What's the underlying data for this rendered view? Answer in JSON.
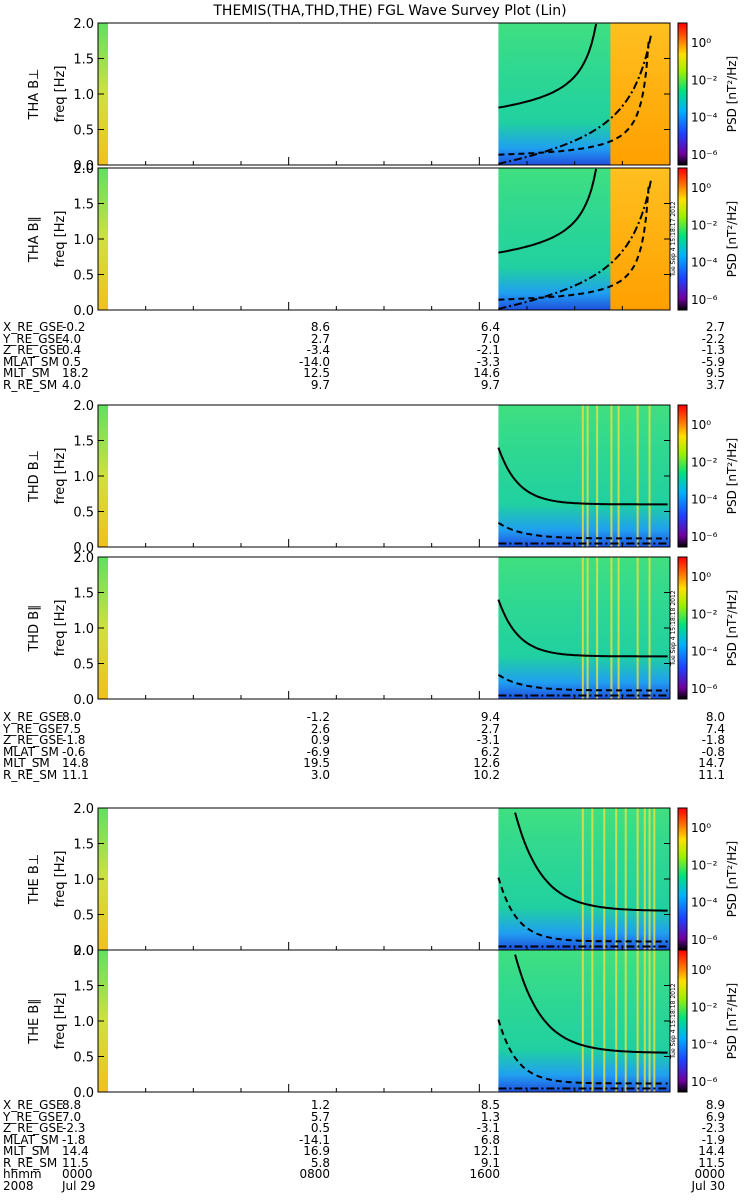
{
  "title": "THEMIS(THA,THD,THE) FGL Wave Survey Plot (Lin)",
  "colors": {
    "background": "#20c8a0",
    "white": "#ffffff"
  },
  "chart_data": {
    "type": "heatmap",
    "x_range_hours": [
      0,
      24
    ],
    "data_start_hour": 16.8,
    "panels": [
      {
        "probe": "THA",
        "component": "B⊥",
        "title": "THA B⊥",
        "ylabel": "freq [Hz]",
        "ylim": [
          0,
          2.0
        ],
        "yticks": [
          "0.0",
          "0.5",
          "1.0",
          "1.5",
          "2.0"
        ],
        "cb_label": "PSD [nT²/Hz]",
        "cb_ticks": [
          "10⁰",
          "10⁻²",
          "10⁻⁴",
          "10⁻⁶"
        ],
        "stamp": ""
      },
      {
        "probe": "THA",
        "component": "B∥",
        "title": "THA B∥",
        "ylabel": "freq [Hz]",
        "ylim": [
          0,
          2.0
        ],
        "yticks": [
          "0.0",
          "0.5",
          "1.0",
          "1.5",
          "2.0"
        ],
        "cb_label": "PSD [nT²/Hz]",
        "cb_ticks": [
          "10⁰",
          "10⁻²",
          "10⁻⁴",
          "10⁻⁶"
        ],
        "stamp": "Tue Sep  4 15:18:17 2012"
      },
      {
        "probe": "THD",
        "component": "B⊥",
        "title": "THD B⊥",
        "ylabel": "freq [Hz]",
        "ylim": [
          0,
          2.0
        ],
        "yticks": [
          "0.0",
          "0.5",
          "1.0",
          "1.5",
          "2.0"
        ],
        "cb_label": "PSD [nT²/Hz]",
        "cb_ticks": [
          "10⁰",
          "10⁻²",
          "10⁻⁴",
          "10⁻⁶"
        ],
        "stamp": ""
      },
      {
        "probe": "THD",
        "component": "B∥",
        "title": "THD B∥",
        "ylabel": "freq [Hz]",
        "ylim": [
          0,
          2.0
        ],
        "yticks": [
          "0.0",
          "0.5",
          "1.0",
          "1.5",
          "2.0"
        ],
        "cb_label": "PSD [nT²/Hz]",
        "cb_ticks": [
          "10⁰",
          "10⁻²",
          "10⁻⁴",
          "10⁻⁶"
        ],
        "stamp": "Tue Sep  4 15:18:18 2012"
      },
      {
        "probe": "THE",
        "component": "B⊥",
        "title": "THE B⊥",
        "ylabel": "freq [Hz]",
        "ylim": [
          0,
          2.0
        ],
        "yticks": [
          "0.0",
          "0.5",
          "1.0",
          "1.5",
          "2.0"
        ],
        "cb_label": "PSD [nT²/Hz]",
        "cb_ticks": [
          "10⁰",
          "10⁻²",
          "10⁻⁴",
          "10⁻⁶"
        ],
        "stamp": ""
      },
      {
        "probe": "THE",
        "component": "B∥",
        "title": "THE B∥",
        "ylabel": "freq [Hz]",
        "ylim": [
          0,
          2.0
        ],
        "yticks": [
          "0.0",
          "0.5",
          "1.0",
          "1.5",
          "2.0"
        ],
        "cb_label": "PSD [nT²/Hz]",
        "cb_ticks": [
          "10⁰",
          "10⁻²",
          "10⁻⁴",
          "10⁻⁶"
        ],
        "stamp": "Tue Sep  4 15:18:18 2012"
      }
    ],
    "orbit_tables": [
      {
        "probe": "THA",
        "rows": [
          {
            "label": "X_RE_GSE",
            "values": [
              "-0.2",
              "8.6",
              "6.4",
              "2.7"
            ]
          },
          {
            "label": "Y_RE_GSE",
            "values": [
              "4.0",
              "2.7",
              "7.0",
              "-2.2"
            ]
          },
          {
            "label": "Z_RE_GSE",
            "values": [
              "0.4",
              "-3.4",
              "-2.1",
              "-1.3"
            ]
          },
          {
            "label": "MLAT_SM",
            "values": [
              "0.5",
              "-14.0",
              "-3.3",
              "-5.9"
            ]
          },
          {
            "label": "MLT_SM",
            "values": [
              "18.2",
              "12.5",
              "14.6",
              "9.5"
            ]
          },
          {
            "label": "R_RE_SM",
            "values": [
              "4.0",
              "9.7",
              "9.7",
              "3.7"
            ]
          }
        ]
      },
      {
        "probe": "THD",
        "rows": [
          {
            "label": "X_RE_GSE",
            "values": [
              "8.0",
              "-1.2",
              "9.4",
              "8.0"
            ]
          },
          {
            "label": "Y_RE_GSE",
            "values": [
              "7.5",
              "2.6",
              "2.7",
              "7.4"
            ]
          },
          {
            "label": "Z_RE_GSE",
            "values": [
              "-1.8",
              "0.9",
              "-3.1",
              "-1.8"
            ]
          },
          {
            "label": "MLAT_SM",
            "values": [
              "-0.6",
              "-6.9",
              "6.2",
              "-0.8"
            ]
          },
          {
            "label": "MLT_SM",
            "values": [
              "14.8",
              "19.5",
              "12.6",
              "14.7"
            ]
          },
          {
            "label": "R_RE_SM",
            "values": [
              "11.1",
              "3.0",
              "10.2",
              "11.1"
            ]
          }
        ]
      },
      {
        "probe": "THE",
        "rows": [
          {
            "label": "X_RE_GSE",
            "values": [
              "8.8",
              "1.2",
              "8.5",
              "8.9"
            ]
          },
          {
            "label": "Y_RE_GSE",
            "values": [
              "7.0",
              "5.7",
              "1.3",
              "6.9"
            ]
          },
          {
            "label": "Z_RE_GSE",
            "values": [
              "-2.3",
              "0.5",
              "-3.1",
              "-2.3"
            ]
          },
          {
            "label": "MLAT_SM",
            "values": [
              "-1.8",
              "-14.1",
              "6.8",
              "-1.9"
            ]
          },
          {
            "label": "MLT_SM",
            "values": [
              "14.4",
              "16.9",
              "12.1",
              "14.4"
            ]
          },
          {
            "label": "R_RE_SM",
            "values": [
              "11.5",
              "5.8",
              "9.1",
              "11.5"
            ]
          },
          {
            "label": "hhmm",
            "values": [
              "0000",
              "0800",
              "1600",
              "0000"
            ]
          },
          {
            "label": "2008",
            "values": [
              "Jul 29",
              "",
              "",
              "Jul 30"
            ]
          }
        ]
      }
    ]
  }
}
